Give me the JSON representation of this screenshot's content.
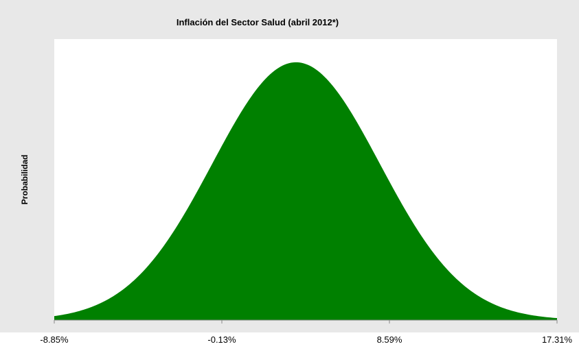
{
  "chart_data": {
    "type": "area",
    "title": "Inflación del Sector Salud (abril 2012*)",
    "ylabel": "Probabilidad",
    "xlabel": "",
    "x_ticks": [
      {
        "value": -8.85,
        "label": "-8.85%"
      },
      {
        "value": -0.13,
        "label": "-0.13%"
      },
      {
        "value": 8.59,
        "label": "8.59%"
      },
      {
        "value": 17.31,
        "label": "17.31%"
      }
    ],
    "xlim": [
      -8.85,
      17.31
    ],
    "ylim": [
      0,
      1.09
    ],
    "distribution": {
      "kind": "normal",
      "mean": 3.73,
      "sd": 4.36
    },
    "grid": false,
    "legend": "none",
    "colors": {
      "fill": "#008000",
      "chart_background": "#e8e8e8",
      "plot_background": "#ffffff",
      "axis": "#888888",
      "text": "#000000"
    }
  }
}
